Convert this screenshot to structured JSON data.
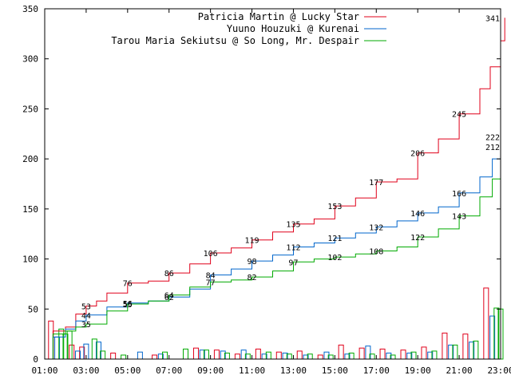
{
  "chart_data": {
    "type": "line",
    "title": "",
    "xlabel": "",
    "ylabel": "",
    "ylim": [
      0,
      350
    ],
    "xlim": [
      "01:00",
      "23:00"
    ],
    "grid": false,
    "legend_placement": "top-right",
    "x_tick_labels": [
      "01:00",
      "03:00",
      "05:00",
      "07:00",
      "09:00",
      "11:00",
      "13:00",
      "15:00",
      "17:00",
      "19:00",
      "21:00",
      "23:00"
    ],
    "y_tick_labels": [
      "0",
      "50",
      "100",
      "150",
      "200",
      "250",
      "300",
      "350"
    ],
    "series": [
      {
        "name": "Patricia Martin @ Lucky Star",
        "color": "#e0001a",
        "cumulative": [
          [
            1,
            0
          ],
          [
            1.4,
            28
          ],
          [
            2,
            32
          ],
          [
            2.5,
            45
          ],
          [
            3,
            53
          ],
          [
            3.5,
            58
          ],
          [
            4,
            66
          ],
          [
            5,
            76
          ],
          [
            6,
            78
          ],
          [
            7,
            86
          ],
          [
            8,
            95
          ],
          [
            9,
            106
          ],
          [
            10,
            111
          ],
          [
            11,
            119
          ],
          [
            12,
            127
          ],
          [
            13,
            135
          ],
          [
            14,
            140
          ],
          [
            15,
            153
          ],
          [
            16,
            161
          ],
          [
            17,
            177
          ],
          [
            18,
            180
          ],
          [
            19,
            206
          ],
          [
            20,
            220
          ],
          [
            21,
            245
          ],
          [
            22,
            270
          ],
          [
            22.5,
            292
          ],
          [
            23,
            318
          ],
          [
            23.2,
            341
          ]
        ],
        "labels": [
          [
            3,
            53
          ],
          [
            5,
            76
          ],
          [
            7,
            86
          ],
          [
            9,
            106
          ],
          [
            11,
            119
          ],
          [
            13,
            135
          ],
          [
            15,
            153
          ],
          [
            17,
            177
          ],
          [
            19,
            206
          ],
          [
            21,
            245
          ],
          [
            23,
            341
          ]
        ],
        "bars": [
          [
            1.3,
            38
          ],
          [
            2.3,
            14
          ],
          [
            2.8,
            12
          ],
          [
            4.3,
            6
          ],
          [
            6.3,
            4
          ],
          [
            8.3,
            11
          ],
          [
            9.3,
            9
          ],
          [
            10.3,
            5
          ],
          [
            11.3,
            10
          ],
          [
            12.3,
            7
          ],
          [
            13.3,
            8
          ],
          [
            14.3,
            4
          ],
          [
            15.3,
            14
          ],
          [
            16.3,
            11
          ],
          [
            17.3,
            10
          ],
          [
            18.3,
            9
          ],
          [
            19.3,
            12
          ],
          [
            20.3,
            26
          ],
          [
            21.3,
            25
          ],
          [
            22.3,
            71
          ]
        ]
      },
      {
        "name": "Yuuno Houzuki @ Kurenai",
        "color": "#0066cc",
        "cumulative": [
          [
            1,
            0
          ],
          [
            1.4,
            22
          ],
          [
            2,
            30
          ],
          [
            2.5,
            38
          ],
          [
            3,
            44
          ],
          [
            4,
            52
          ],
          [
            5,
            56
          ],
          [
            6,
            58
          ],
          [
            7,
            62
          ],
          [
            8,
            70
          ],
          [
            9,
            84
          ],
          [
            10,
            90
          ],
          [
            11,
            98
          ],
          [
            12,
            104
          ],
          [
            13,
            112
          ],
          [
            14,
            116
          ],
          [
            15,
            121
          ],
          [
            16,
            126
          ],
          [
            17,
            132
          ],
          [
            18,
            138
          ],
          [
            19,
            146
          ],
          [
            20,
            152
          ],
          [
            21,
            166
          ],
          [
            22,
            182
          ],
          [
            22.6,
            200
          ],
          [
            23,
            222
          ]
        ],
        "labels": [
          [
            3,
            44
          ],
          [
            5,
            56
          ],
          [
            7,
            62
          ],
          [
            9,
            84
          ],
          [
            11,
            98
          ],
          [
            13,
            112
          ],
          [
            15,
            121
          ],
          [
            17,
            132
          ],
          [
            19,
            146
          ],
          [
            21,
            166
          ],
          [
            23,
            222
          ]
        ],
        "bars": [
          [
            1.6,
            22
          ],
          [
            2.6,
            8
          ],
          [
            3,
            15
          ],
          [
            3.6,
            17
          ],
          [
            5.6,
            7
          ],
          [
            6.6,
            5
          ],
          [
            8.6,
            9
          ],
          [
            9.6,
            8
          ],
          [
            10.6,
            9
          ],
          [
            11.6,
            5
          ],
          [
            12.6,
            6
          ],
          [
            13.6,
            4
          ],
          [
            14.6,
            7
          ],
          [
            15.6,
            5
          ],
          [
            16.6,
            13
          ],
          [
            17.6,
            6
          ],
          [
            18.6,
            6
          ],
          [
            19.6,
            7
          ],
          [
            20.6,
            14
          ],
          [
            21.6,
            17
          ],
          [
            22.6,
            43
          ]
        ]
      },
      {
        "name": "Tarou Maria Sekiutsu @ So Long, Mr. Despair",
        "color": "#00aa00",
        "cumulative": [
          [
            1,
            0
          ],
          [
            1.4,
            25
          ],
          [
            2,
            28
          ],
          [
            2.5,
            32
          ],
          [
            3,
            35
          ],
          [
            4,
            48
          ],
          [
            5,
            55
          ],
          [
            6,
            58
          ],
          [
            7,
            64
          ],
          [
            8,
            72
          ],
          [
            9,
            77
          ],
          [
            10,
            79
          ],
          [
            11,
            82
          ],
          [
            12,
            88
          ],
          [
            13,
            97
          ],
          [
            14,
            100
          ],
          [
            15,
            102
          ],
          [
            16,
            105
          ],
          [
            17,
            108
          ],
          [
            18,
            112
          ],
          [
            19,
            122
          ],
          [
            20,
            130
          ],
          [
            21,
            143
          ],
          [
            22,
            162
          ],
          [
            22.6,
            180
          ],
          [
            23,
            212
          ]
        ],
        "labels": [
          [
            3,
            35
          ],
          [
            5,
            55
          ],
          [
            7,
            64
          ],
          [
            9,
            77
          ],
          [
            11,
            82
          ],
          [
            13,
            97
          ],
          [
            15,
            102
          ],
          [
            17,
            108
          ],
          [
            19,
            122
          ],
          [
            21,
            143
          ],
          [
            23,
            212
          ]
        ],
        "bars": [
          [
            1.8,
            30
          ],
          [
            2,
            25
          ],
          [
            2.2,
            28
          ],
          [
            3.4,
            20
          ],
          [
            3.8,
            8
          ],
          [
            4.8,
            4
          ],
          [
            6.8,
            7
          ],
          [
            7.8,
            10
          ],
          [
            8.8,
            9
          ],
          [
            9.8,
            6
          ],
          [
            10.8,
            5
          ],
          [
            11.8,
            7
          ],
          [
            12.8,
            5
          ],
          [
            13.8,
            5
          ],
          [
            14.8,
            4
          ],
          [
            15.8,
            6
          ],
          [
            16.8,
            5
          ],
          [
            17.8,
            4
          ],
          [
            18.8,
            7
          ],
          [
            19.8,
            8
          ],
          [
            20.8,
            14
          ],
          [
            21.8,
            18
          ],
          [
            22.8,
            51
          ],
          [
            23,
            50
          ]
        ]
      }
    ]
  }
}
